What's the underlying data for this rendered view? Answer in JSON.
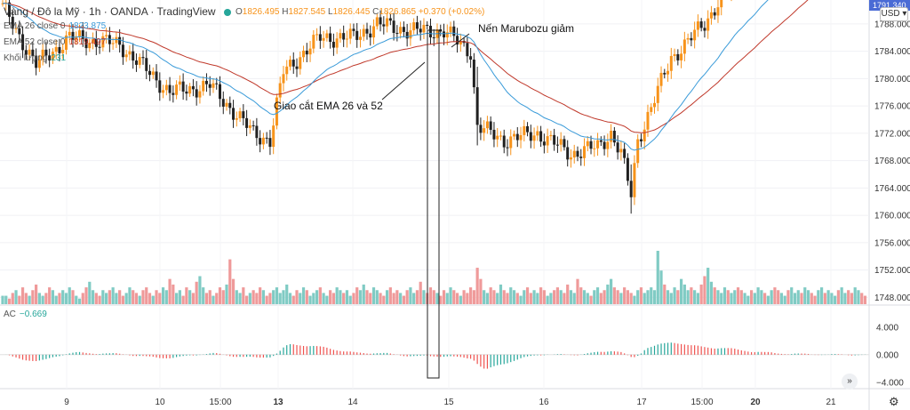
{
  "header": {
    "symbol": "Vàng / Đô la Mỹ",
    "interval": "1h",
    "exchange": "OANDA",
    "source": "TradingView",
    "open_label": "O",
    "open": "1826.495",
    "high_label": "H",
    "high": "1827.545",
    "low_label": "L",
    "low": "1826.445",
    "close_label": "C",
    "close": "1826.865",
    "change": "+0.370 (+0.02%)"
  },
  "legend": {
    "ema26_label": "EMA 26 close 0",
    "ema26_value": "1823.875",
    "ema52_label": "EMA 52 close 0",
    "ema52_value": "1819.497",
    "volume_label": "Khối lượng",
    "volume_value": "231"
  },
  "ac": {
    "label": "AC",
    "value": "−0.669"
  },
  "annotations": {
    "marubozu": "Nến Marubozu giảm",
    "crossover": "Giao cắt EMA 26 và 52"
  },
  "axis": {
    "currency": "USD",
    "current_price_partial": "1791.340"
  },
  "colors": {
    "up": "#f7931a",
    "down": "#212121",
    "ema26": "#3a9bd9",
    "ema52": "#c0392b",
    "vol_up": "#80cbc4",
    "vol_down": "#ef9a9a",
    "ac_up": "#26a69a",
    "ac_down": "#ef5350"
  },
  "chart_data": {
    "type": "candlestick",
    "y_ticks": [
      "1788.000",
      "1784.000",
      "1780.000",
      "1776.000",
      "1772.000",
      "1768.000",
      "1764.000",
      "1760.000",
      "1756.000",
      "1752.000",
      "1748.000"
    ],
    "ac_ticks": [
      "4.000",
      "0.000",
      "−4.000"
    ],
    "x_ticks": [
      "9",
      "10",
      "15:00",
      "13",
      "14",
      "15",
      "16",
      "17",
      "15:00",
      "20",
      "21"
    ],
    "ylim": [
      1747,
      1791.5
    ],
    "ac_ylim": [
      -4.8,
      6.3
    ],
    "anchors": [
      [
        0,
        1790.5
      ],
      [
        10,
        1782
      ],
      [
        20,
        1786
      ],
      [
        35,
        1785
      ],
      [
        50,
        1778
      ],
      [
        62,
        1779
      ],
      [
        75,
        1772
      ],
      [
        80,
        1771
      ],
      [
        84,
        1781
      ],
      [
        95,
        1786
      ],
      [
        105,
        1786
      ],
      [
        112,
        1788
      ],
      [
        122,
        1787
      ],
      [
        132,
        1787
      ],
      [
        137,
        1785
      ],
      [
        140,
        1784
      ],
      [
        142,
        1773
      ],
      [
        150,
        1771
      ],
      [
        160,
        1772
      ],
      [
        170,
        1769
      ],
      [
        178,
        1770
      ],
      [
        182,
        1772
      ],
      [
        185,
        1769
      ],
      [
        188,
        1763
      ],
      [
        190,
        1771
      ],
      [
        200,
        1783
      ],
      [
        210,
        1788
      ],
      [
        215,
        1792
      ],
      [
        260,
        1810
      ],
      [
        270,
        1800
      ],
      [
        280,
        1792.5
      ],
      [
        283,
        1790
      ],
      [
        287,
        1792
      ]
    ],
    "volume": [
      3,
      3,
      2,
      4,
      5,
      3,
      6,
      4,
      3,
      5,
      7,
      4,
      3,
      4,
      6,
      5,
      3,
      4,
      5,
      4,
      6,
      5,
      3,
      2,
      4,
      6,
      8,
      5,
      4,
      3,
      5,
      4,
      5,
      6,
      4,
      5,
      3,
      4,
      6,
      5,
      4,
      3,
      5,
      6,
      4,
      3,
      5,
      4,
      6,
      5,
      9,
      7,
      4,
      5,
      3,
      6,
      5,
      4,
      8,
      10,
      6,
      4,
      5,
      3,
      4,
      6,
      5,
      7,
      16,
      9,
      5,
      4,
      6,
      3,
      4,
      5,
      4,
      6,
      5,
      3,
      4,
      5,
      6,
      4,
      5,
      7,
      4,
      3,
      5,
      4,
      6,
      5,
      3,
      4,
      5,
      6,
      4,
      3,
      5,
      4,
      6,
      5,
      4,
      5,
      3,
      4,
      6,
      5,
      7,
      5,
      4,
      6,
      5,
      4,
      3,
      5,
      6,
      4,
      5,
      4,
      3,
      5,
      6,
      4,
      5,
      8,
      5,
      4,
      6,
      5,
      4,
      3,
      5,
      4,
      6,
      5,
      4,
      3,
      5,
      4,
      6,
      5,
      13,
      9,
      5,
      4,
      6,
      5,
      4,
      7,
      5,
      4,
      6,
      5,
      4,
      3,
      5,
      6,
      4,
      5,
      4,
      6,
      5,
      3,
      4,
      5,
      6,
      5,
      4,
      7,
      5,
      4,
      9,
      6,
      5,
      4,
      3,
      5,
      6,
      4,
      5,
      7,
      9,
      6,
      5,
      4,
      6,
      5,
      4,
      3,
      5,
      6,
      4,
      5,
      6,
      5,
      28,
      12,
      7,
      5,
      4,
      6,
      5,
      9,
      7,
      5,
      6,
      5,
      4,
      7,
      10,
      13,
      8,
      6,
      5,
      4,
      6,
      5,
      4,
      5,
      6,
      5,
      4,
      3,
      5,
      4,
      6,
      5,
      4,
      3,
      5,
      6,
      5,
      4,
      3,
      5,
      6,
      4,
      5,
      4,
      6,
      5,
      4,
      3,
      5,
      6,
      4,
      5,
      4,
      3,
      5,
      6,
      4,
      5,
      4,
      6,
      5,
      4,
      3,
      5,
      6,
      4,
      5,
      4,
      6,
      5,
      4,
      5,
      4,
      6,
      5,
      4,
      3,
      5,
      6,
      4,
      5,
      4,
      6,
      5,
      4,
      3,
      5,
      4
    ]
  }
}
